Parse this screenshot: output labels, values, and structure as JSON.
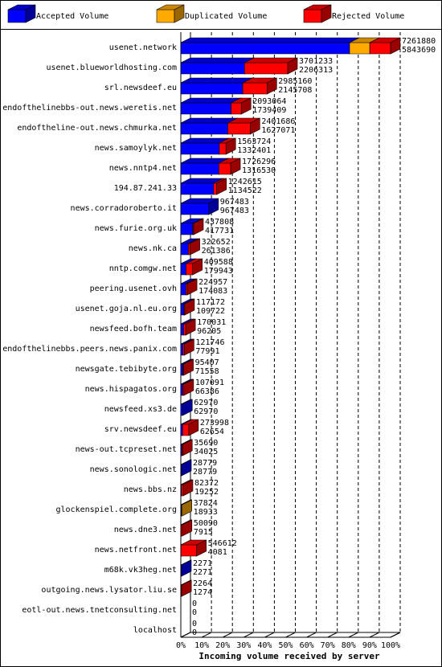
{
  "chart_data": {
    "type": "bar",
    "orientation": "horizontal",
    "stacked": true,
    "x_label": "Incoming volume received by server",
    "categories": [
      "usenet.network",
      "usenet.blueworldhosting.com",
      "srl.newsdeef.eu",
      "endofthelinebbs-out.news.weretis.net",
      "endoftheline-out.news.chmurka.net",
      "news.samoylyk.net",
      "news.nntp4.net",
      "194.87.241.33",
      "news.corradoroberto.it",
      "news.furie.org.uk",
      "news.nk.ca",
      "nntp.comgw.net",
      "peering.usenet.ovh",
      "usenet.goja.nl.eu.org",
      "newsfeed.bofh.team",
      "endofthelinebbs.peers.news.panix.com",
      "newsgate.tebibyte.org",
      "news.hispagatos.org",
      "newsfeed.xs3.de",
      "srv.newsdeef.eu",
      "news-out.tcpreset.net",
      "news.sonologic.net",
      "news.bbs.nz",
      "glockenspiel.complete.org",
      "news.dne3.net",
      "news.netfront.net",
      "m68k.vk3heg.net",
      "outgoing.news.lysator.liu.se",
      "eotl-out.news.tnetconsulting.net",
      "localhost"
    ],
    "totals": [
      7261880,
      3701233,
      2985160,
      2093064,
      2401686,
      1563724,
      1726296,
      1242615,
      967483,
      437808,
      322652,
      409588,
      224957,
      117172,
      170031,
      121746,
      95407,
      107091,
      62970,
      273998,
      35690,
      28779,
      82372,
      37824,
      50090,
      546612,
      2271,
      2264,
      0,
      0
    ],
    "series": [
      {
        "name": "Accepted Volume",
        "color": "#0000ff",
        "values": [
          5843690,
          2206313,
          2145708,
          1739409,
          1627071,
          1332401,
          1316530,
          1134522,
          967483,
          417731,
          261386,
          179943,
          174083,
          109722,
          96205,
          77991,
          71558,
          66386,
          62970,
          62654,
          34025,
          28779,
          19252,
          18933,
          7915,
          4081,
          2271,
          1274,
          0,
          0
        ]
      },
      {
        "name": "Duplicated Volume",
        "color": "#ffaa00",
        "values": [
          700000,
          0,
          0,
          0,
          0,
          0,
          0,
          0,
          0,
          0,
          0,
          0,
          0,
          0,
          0,
          0,
          0,
          0,
          0,
          0,
          0,
          0,
          0,
          18891,
          0,
          0,
          0,
          0,
          0,
          0
        ]
      },
      {
        "name": "Rejected Volume",
        "color": "#ff0000",
        "values": [
          718190,
          1494920,
          839452,
          353655,
          774615,
          231323,
          409766,
          108093,
          0,
          20077,
          61266,
          229645,
          50874,
          7450,
          73826,
          43755,
          23849,
          40705,
          0,
          211344,
          1665,
          0,
          63120,
          0,
          42175,
          542531,
          0,
          990,
          0,
          0
        ]
      }
    ],
    "xlim": [
      0,
      7261880
    ],
    "xticks": [
      {
        "value": 0,
        "label": "0%"
      },
      {
        "value": 726188,
        "label": "10%"
      },
      {
        "value": 1452376,
        "label": "20%"
      },
      {
        "value": 2178564,
        "label": "30%"
      },
      {
        "value": 2904752,
        "label": "40%"
      },
      {
        "value": 3630940,
        "label": "50%"
      },
      {
        "value": 4357128,
        "label": "60%"
      },
      {
        "value": 5083316,
        "label": "70%"
      },
      {
        "value": 5809504,
        "label": "80%"
      },
      {
        "value": 6535692,
        "label": "90%"
      },
      {
        "value": 7261880,
        "label": "100%"
      }
    ],
    "grid": true
  }
}
